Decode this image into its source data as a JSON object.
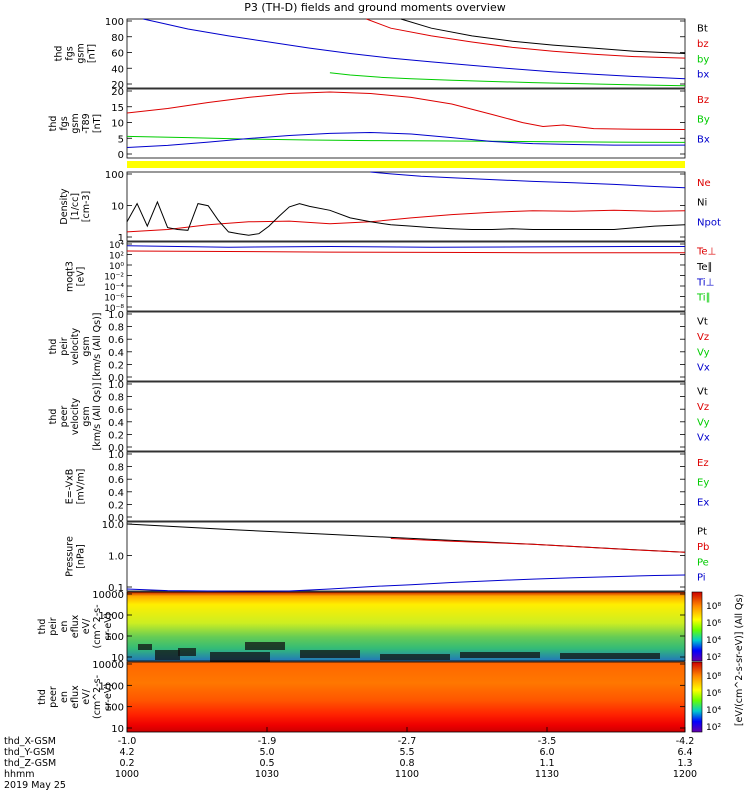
{
  "title": "P3 (TH-D) fields and ground moments overview",
  "colors": {
    "black": "#000000",
    "red": "#dd0000",
    "green": "#00cc00",
    "blue": "#0000cc",
    "yellow": "#ffff00"
  },
  "chart_data": [
    {
      "id": "fgs-gsm",
      "type": "line",
      "ylabel": [
        "thd",
        "fgs",
        "gsm",
        "[nT]"
      ],
      "ylim": [
        10,
        100
      ],
      "yticks": [
        "100",
        "80",
        "60",
        "40",
        "20"
      ],
      "legend": [
        {
          "label": "Bt",
          "color": "#000000"
        },
        {
          "label": "bz",
          "color": "#dd0000"
        },
        {
          "label": "by",
          "color": "#00cc00"
        },
        {
          "label": "bx",
          "color": "#0000cc"
        }
      ],
      "series": [
        {
          "name": "Bt",
          "color": "#000000",
          "x": [
            1.35,
            1.5,
            1.7,
            1.9,
            2.1,
            2.3,
            2.5,
            2.75
          ],
          "y": [
            100,
            88,
            78,
            71,
            66,
            62,
            58,
            55
          ]
        },
        {
          "name": "bz",
          "color": "#dd0000",
          "x": [
            1.18,
            1.3,
            1.5,
            1.7,
            1.9,
            2.1,
            2.3,
            2.5,
            2.75
          ],
          "y": [
            100,
            88,
            78,
            70,
            63,
            58,
            54,
            51,
            49
          ]
        },
        {
          "name": "by",
          "color": "#00cc00",
          "x": [
            1.0,
            1.1,
            1.25,
            1.4,
            1.6,
            1.8,
            2.0,
            2.25,
            2.5,
            2.75
          ],
          "y": [
            30,
            27,
            24,
            22,
            20,
            18.5,
            17,
            15.5,
            14,
            13
          ]
        },
        {
          "name": "bx",
          "color": "#0000cc",
          "x": [
            0.08,
            0.15,
            0.3,
            0.5,
            0.7,
            0.9,
            1.1,
            1.3,
            1.5,
            1.7,
            1.9,
            2.1,
            2.3,
            2.5,
            2.75
          ],
          "y": [
            100,
            96,
            87,
            78,
            70,
            62,
            55,
            49,
            44,
            39.5,
            35,
            31,
            28,
            25,
            22
          ]
        }
      ]
    },
    {
      "id": "fgs-gsm-t89",
      "type": "line",
      "ylabel": [
        "thd",
        "fgs",
        "gsm",
        "-T89",
        "[nT]"
      ],
      "ylim": [
        -2,
        21
      ],
      "yticks": [
        "20",
        "15",
        "10",
        "5",
        "0"
      ],
      "legend": [
        {
          "label": "Bz",
          "color": "#dd0000"
        },
        {
          "label": "By",
          "color": "#00cc00"
        },
        {
          "label": "Bx",
          "color": "#0000cc"
        }
      ],
      "series": [
        {
          "name": "Bz",
          "color": "#dd0000",
          "x": [
            0,
            0.2,
            0.4,
            0.6,
            0.8,
            1.0,
            1.2,
            1.4,
            1.6,
            1.8,
            1.95,
            2.05,
            2.15,
            2.3,
            2.5,
            2.75
          ],
          "y": [
            13,
            14.5,
            16.5,
            18.2,
            19.5,
            20,
            19.5,
            18.2,
            16,
            12.5,
            9.8,
            8.5,
            9.0,
            7.8,
            7.6,
            7.5
          ]
        },
        {
          "name": "By",
          "color": "#00cc00",
          "x": [
            0,
            0.3,
            0.6,
            0.9,
            1.2,
            1.5,
            1.8,
            2.1,
            2.4,
            2.75
          ],
          "y": [
            5.2,
            4.8,
            4.3,
            4.0,
            3.8,
            3.7,
            3.6,
            3.4,
            3.3,
            3.2
          ]
        },
        {
          "name": "Bx",
          "color": "#0000cc",
          "x": [
            0,
            0.2,
            0.4,
            0.6,
            0.8,
            1.0,
            1.2,
            1.4,
            1.6,
            1.8,
            2.0,
            2.2,
            2.4,
            2.6,
            2.75
          ],
          "y": [
            1.5,
            2.2,
            3.3,
            4.5,
            5.5,
            6.2,
            6.5,
            6.0,
            4.8,
            3.5,
            2.8,
            2.5,
            2.3,
            2.3,
            2.3
          ]
        }
      ]
    },
    {
      "id": "density",
      "type": "line",
      "ylog": true,
      "ylabel": [
        "Density",
        "[1/cc]",
        "[cm-3]"
      ],
      "ylim": [
        0.05,
        200
      ],
      "yticks": [
        "100",
        "10",
        "1"
      ],
      "legend": [
        {
          "label": "Ne",
          "color": "#dd0000"
        },
        {
          "label": "Ni",
          "color": "#000000"
        },
        {
          "label": "Npot",
          "color": "#0000cc"
        }
      ],
      "series": [
        {
          "name": "Ne",
          "color": "#dd0000",
          "x": [
            0,
            0.2,
            0.4,
            0.6,
            0.8,
            1.0,
            1.2,
            1.4,
            1.6,
            1.8,
            2.0,
            2.2,
            2.4,
            2.6,
            2.75
          ],
          "y": [
            0.15,
            0.2,
            0.35,
            0.5,
            0.55,
            0.4,
            0.5,
            0.8,
            1.2,
            1.6,
            1.9,
            1.8,
            2.0,
            1.8,
            1.9
          ]
        },
        {
          "name": "Ni",
          "color": "#000000",
          "x": [
            0,
            0.05,
            0.1,
            0.15,
            0.2,
            0.25,
            0.3,
            0.35,
            0.4,
            0.45,
            0.5,
            0.55,
            0.6,
            0.65,
            0.7,
            0.75,
            0.8,
            0.85,
            0.9,
            1.0,
            1.1,
            1.2,
            1.3,
            1.4,
            1.5,
            1.6,
            1.7,
            1.8,
            1.9,
            2.0,
            2.2,
            2.4,
            2.6,
            2.75
          ],
          "y": [
            0.5,
            4.5,
            0.3,
            5.5,
            0.25,
            0.2,
            0.18,
            4.5,
            3.5,
            0.6,
            0.15,
            0.12,
            0.1,
            0.12,
            0.3,
            1.0,
            3.0,
            4.5,
            3.2,
            2.0,
            0.8,
            0.5,
            0.35,
            0.3,
            0.25,
            0.22,
            0.2,
            0.2,
            0.22,
            0.2,
            0.2,
            0.2,
            0.3,
            0.35
          ]
        },
        {
          "name": "Npot",
          "color": "#0000cc",
          "x": [
            1.2,
            1.3,
            1.45,
            1.6,
            1.8,
            2.0,
            2.2,
            2.4,
            2.6,
            2.75
          ],
          "y": [
            200,
            160,
            120,
            100,
            80,
            65,
            55,
            45,
            35,
            30
          ]
        }
      ]
    },
    {
      "id": "moqt3",
      "type": "line",
      "ylog": true,
      "ylabel": [
        "moqt3",
        "[eV]"
      ],
      "ylim": [
        1,
        10000
      ],
      "yticks": [
        "10⁴",
        "10²",
        "10⁰",
        "10⁻²",
        "10⁻⁴",
        "10⁻⁶",
        "10⁻⁸"
      ],
      "legend": [
        {
          "label": "Te⊥",
          "color": "#dd0000"
        },
        {
          "label": "Te∥",
          "color": "#000000"
        },
        {
          "label": "Ti⊥",
          "color": "#0000cc"
        },
        {
          "label": "Ti∥",
          "color": "#00cc00"
        }
      ],
      "series": [
        {
          "name": "Te⊥",
          "color": "#dd0000",
          "x": [
            0,
            0.5,
            1.0,
            1.5,
            2.0,
            2.5,
            2.75
          ],
          "y": [
            3000,
            2800,
            2600,
            2500,
            2400,
            2400,
            2400
          ]
        },
        {
          "name": "Ti⊥",
          "color": "#0000cc",
          "x": [
            0,
            0.5,
            1.0,
            1.5,
            2.0,
            2.5,
            2.75
          ],
          "y": [
            6000,
            5000,
            5500,
            5000,
            5200,
            5500,
            5500
          ]
        }
      ]
    },
    {
      "id": "peir-velocity",
      "type": "line",
      "ylabel": [
        "thd",
        "peir",
        "velocity",
        "gsm",
        "[km/s (All Qs)]"
      ],
      "ylim": [
        0,
        1
      ],
      "yticks": [
        "1.0",
        "0.8",
        "0.6",
        "0.4",
        "0.2",
        "0.0"
      ],
      "legend": [
        {
          "label": "Vt",
          "color": "#000000"
        },
        {
          "label": "Vz",
          "color": "#dd0000"
        },
        {
          "label": "Vy",
          "color": "#00cc00"
        },
        {
          "label": "Vx",
          "color": "#0000cc"
        }
      ],
      "series": []
    },
    {
      "id": "peer-velocity",
      "type": "line",
      "ylabel": [
        "thd",
        "peer",
        "velocity",
        "gsm",
        "[km/s (All Qs)]"
      ],
      "ylim": [
        0,
        1
      ],
      "yticks": [
        "1.0",
        "0.8",
        "0.6",
        "0.4",
        "0.2",
        "0.0"
      ],
      "legend": [
        {
          "label": "Vt",
          "color": "#000000"
        },
        {
          "label": "Vz",
          "color": "#dd0000"
        },
        {
          "label": "Vy",
          "color": "#00cc00"
        },
        {
          "label": "Vx",
          "color": "#0000cc"
        }
      ],
      "series": []
    },
    {
      "id": "efield",
      "type": "line",
      "ylabel": [
        "E=-VxB",
        "[mV/m]"
      ],
      "ylim": [
        0,
        1
      ],
      "yticks": [
        "1.0",
        "0.8",
        "0.6",
        "0.4",
        "0.2",
        "0.0"
      ],
      "legend": [
        {
          "label": "Ez",
          "color": "#dd0000"
        },
        {
          "label": "Ey",
          "color": "#00cc00"
        },
        {
          "label": "Ex",
          "color": "#0000cc"
        }
      ],
      "series": []
    },
    {
      "id": "pressure",
      "type": "line",
      "ylog": true,
      "ylabel": [
        "Pressure",
        "[nPa]"
      ],
      "ylim": [
        0.05,
        30
      ],
      "yticks": [
        "10.0",
        "1.0",
        "0.1"
      ],
      "legend": [
        {
          "label": "Pt",
          "color": "#000000"
        },
        {
          "label": "Pb",
          "color": "#dd0000"
        },
        {
          "label": "Pe",
          "color": "#00cc00"
        },
        {
          "label": "Pi",
          "color": "#0000cc"
        }
      ],
      "series": [
        {
          "name": "Pt",
          "color": "#000000",
          "x": [
            0,
            0.5,
            1.0,
            1.5,
            2.0,
            2.5,
            2.75
          ],
          "y": [
            25,
            15,
            9.5,
            6,
            3.8,
            2.3,
            1.8
          ]
        },
        {
          "name": "Pb",
          "color": "#dd0000",
          "x": [
            1.3,
            1.6,
            2.0,
            2.4,
            2.75
          ],
          "y": [
            6.5,
            5,
            3.8,
            2.5,
            1.8
          ]
        },
        {
          "name": "Pi",
          "color": "#0000cc",
          "x": [
            0,
            0.2,
            0.4,
            0.6,
            0.8,
            1.0,
            1.2,
            1.4,
            1.6,
            1.8,
            2.0,
            2.2,
            2.4,
            2.6,
            2.75
          ],
          "y": [
            0.06,
            0.052,
            0.05,
            0.048,
            0.05,
            0.06,
            0.075,
            0.09,
            0.11,
            0.13,
            0.15,
            0.17,
            0.19,
            0.21,
            0.22
          ]
        }
      ]
    },
    {
      "id": "peir-en-eflux",
      "type": "heatmap",
      "ylabel": [
        "thd",
        "peir",
        "en",
        "eflux",
        "eV/",
        "(cm^2-s-",
        "sr-eV)"
      ],
      "yticks": [
        "10000",
        "1000",
        "100",
        "10"
      ],
      "colorbar_ticks": [
        "10⁸",
        "10⁶",
        "10⁴",
        "10²"
      ]
    },
    {
      "id": "peer-en-eflux",
      "type": "heatmap",
      "ylabel": [
        "thd",
        "peer",
        "en",
        "eflux",
        "eV/",
        "(cm^2-s-",
        "sr-eV)"
      ],
      "yticks": [
        "10000",
        "1000",
        "100",
        "10"
      ],
      "colorbar_ticks": [
        "10⁸",
        "10⁶",
        "10⁴",
        "10²"
      ]
    }
  ],
  "colorbar_label": "[eV/(cm^2-s-sr-eV)] (All Qs)",
  "xaxis": {
    "rows": [
      {
        "label": "thd_X-GSM",
        "values": [
          "-1.0",
          "-1.9",
          "-2.7",
          "-3.5",
          "-4.2"
        ]
      },
      {
        "label": "thd_Y-GSM",
        "values": [
          "4.2",
          "5.0",
          "5.5",
          "6.0",
          "6.4"
        ]
      },
      {
        "label": "thd_Z-GSM",
        "values": [
          "0.2",
          "0.5",
          "0.8",
          "1.1",
          "1.3"
        ]
      },
      {
        "label": "hhmm",
        "values": [
          "1000",
          "1030",
          "1100",
          "1130",
          "1200"
        ]
      }
    ],
    "date": "2019 May 25"
  }
}
